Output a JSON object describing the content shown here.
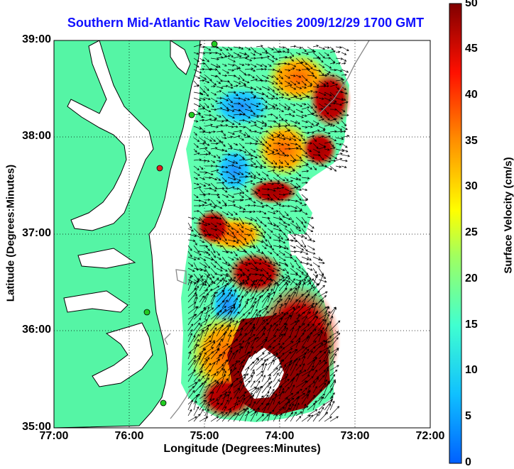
{
  "title": "Southern Mid-Atlantic Raw Velocities 2009/12/29 1700 GMT",
  "map": {
    "xlabel": "Longitude (Degrees:Minutes)",
    "ylabel": "Latitude (Degrees:Minutes)",
    "lon_range": [
      -77,
      -72
    ],
    "lat_range": [
      35,
      39
    ],
    "x_ticks": [
      "77:00",
      "76:00",
      "75:00",
      "74:00",
      "73:00",
      "72:00"
    ],
    "y_ticks": [
      "39:00",
      "38:00",
      "37:00",
      "36:00",
      "35:00"
    ],
    "land_color": "#55f5a5",
    "arrow_color": "#000000",
    "station_color": "#22cc22"
  },
  "colorbar": {
    "label": "Surface Velocity (cm/s)",
    "min": 0,
    "max": 50,
    "ticks": [
      "0",
      "5",
      "10",
      "15",
      "20",
      "25",
      "30",
      "35",
      "40",
      "45",
      "50"
    ]
  }
}
